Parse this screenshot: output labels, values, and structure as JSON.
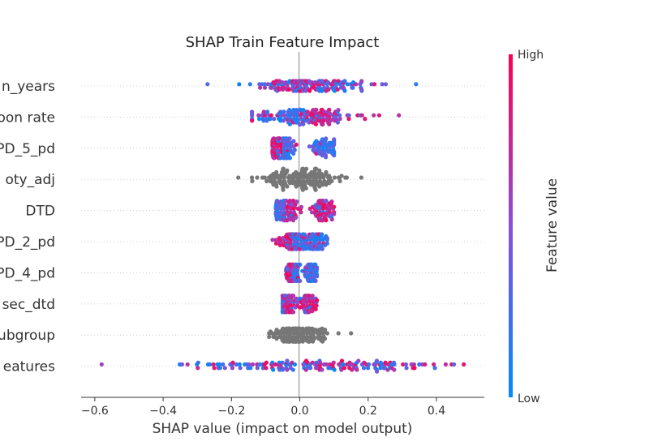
{
  "chart_data": {
    "type": "scatter",
    "title": "SHAP Train Feature Impact",
    "xlabel": "SHAP value (impact on model output)",
    "xlim": [
      -0.64,
      0.54
    ],
    "xticks": [
      "−0.6",
      "−0.4",
      "−0.2",
      "0.0",
      "0.2",
      "0.4"
    ],
    "xtick_values": [
      -0.6,
      -0.4,
      -0.2,
      0.0,
      0.2,
      0.4
    ],
    "colorbar": {
      "label": "Feature value",
      "high": "High",
      "low": "Low",
      "high_color": "#ff0052",
      "low_color": "#008bfb",
      "missing_color": "#777777"
    },
    "features": [
      {
        "label": "n_years",
        "colored": true,
        "min": -0.27,
        "max": 0.34,
        "center": 0.03,
        "spread": 0.09,
        "peak": 6,
        "pos_bias": 0.5
      },
      {
        "label": "oon rate",
        "colored": true,
        "min": -0.14,
        "max": 0.29,
        "center": 0.02,
        "spread": 0.08,
        "peak": 9,
        "pos_bias": 0.75
      },
      {
        "label": "PD_5_pd",
        "colored": true,
        "min": -0.08,
        "max": 0.1,
        "center": -0.05,
        "spread": 0.02,
        "peak": 12,
        "pos_bias": 0.1,
        "cluster2": 0.07
      },
      {
        "label": "oty_adj",
        "colored": false,
        "min": -0.18,
        "max": 0.18,
        "center": 0.0,
        "spread": 0.06,
        "peak": 13,
        "pos_bias": 0.5
      },
      {
        "label": "DTD",
        "colored": true,
        "min": -0.07,
        "max": 0.1,
        "center": -0.04,
        "spread": 0.02,
        "peak": 12,
        "pos_bias": 0.85,
        "cluster2": 0.07
      },
      {
        "label": "PD_2_pd",
        "colored": true,
        "min": -0.08,
        "max": 0.08,
        "center": -0.02,
        "spread": 0.02,
        "peak": 9,
        "pos_bias": 0.2,
        "cluster2": 0.04
      },
      {
        "label": "PD_4_pd",
        "colored": true,
        "min": -0.04,
        "max": 0.05,
        "center": -0.02,
        "spread": 0.01,
        "peak": 10,
        "pos_bias": 0.2,
        "cluster2": 0.035
      },
      {
        "label": "sec_dtd",
        "colored": true,
        "min": -0.05,
        "max": 0.05,
        "center": -0.04,
        "spread": 0.015,
        "peak": 10,
        "pos_bias": 0.8,
        "cluster2": 0.02
      },
      {
        "label": "ubgroup",
        "colored": false,
        "min": -0.09,
        "max": 0.15,
        "center": 0.0,
        "spread": 0.04,
        "peak": 8,
        "pos_bias": 0.5
      },
      {
        "label": "eatures",
        "colored": true,
        "min": -0.58,
        "max": 0.48,
        "center": 0.05,
        "spread": 0.2,
        "peak": 7,
        "pos_bias": 0.6
      }
    ]
  }
}
